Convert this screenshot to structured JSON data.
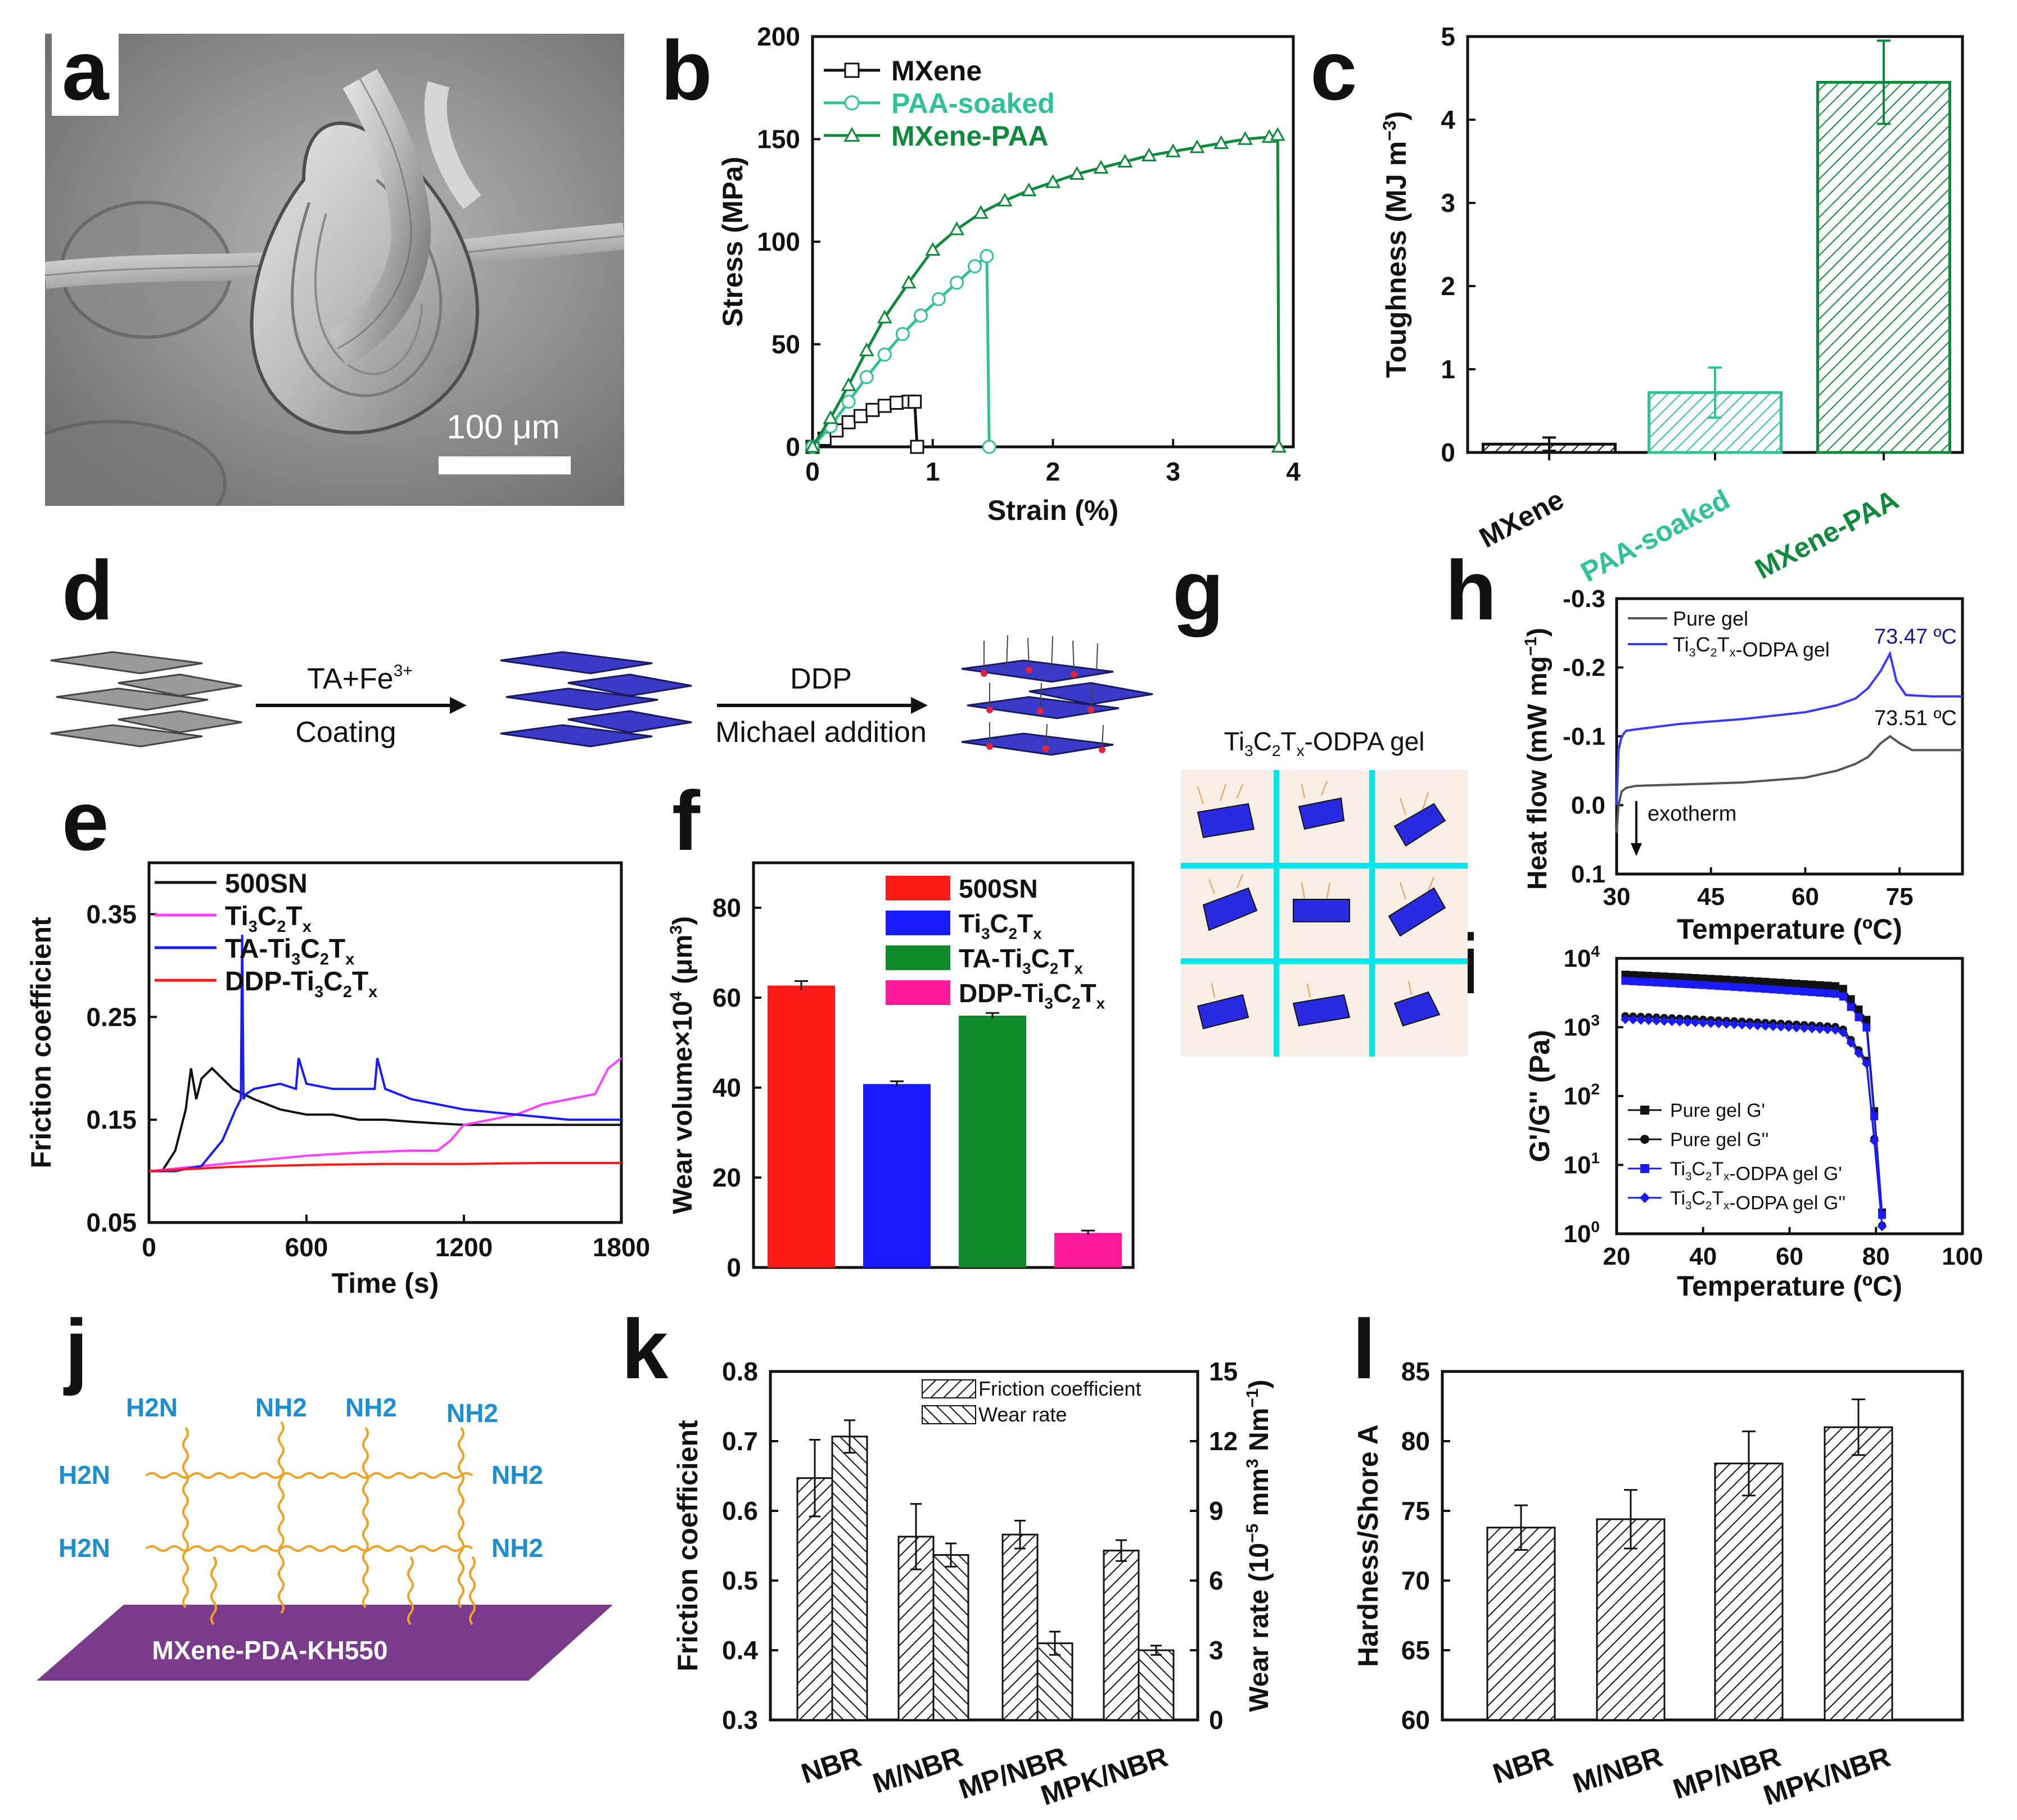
{
  "panel_labels": [
    "a",
    "b",
    "c",
    "d",
    "e",
    "f",
    "g",
    "h",
    "i",
    "j",
    "k",
    "l"
  ],
  "colors": {
    "mxene_black": "#111111",
    "paa_soaked": "#2fc48f",
    "mxene_paa": "#0f8a3c",
    "red": "#ff1a1a",
    "blue": "#1a1aff",
    "green": "#0f8a2a",
    "magenta": "#ff1a9a",
    "pink_line": "#ff40ff",
    "purple": "#7a3a8c",
    "cyan": "#00e5ee",
    "amine_blue": "#1d8fd0",
    "chain_orange": "#f0a020"
  },
  "panel_a": {
    "scale_bar_label": "100 μm"
  },
  "panel_d": {
    "step1_top": "TA+Fe",
    "step1_top_sup": "3+",
    "step1_bottom": "Coating",
    "step2_top": "DDP",
    "step2_bottom": "Michael addition"
  },
  "panel_g": {
    "title": "Ti",
    "title_full": "Ti3C2Tx-ODPA gel"
  },
  "panel_j": {
    "amine_labels": [
      "H2N",
      "NH2",
      "NH2",
      "NH2",
      "H2N",
      "NH2",
      "H2N",
      "NH2"
    ],
    "substrate_label": "MXene-PDA-KH550"
  },
  "chart_data": [
    {
      "panel": "b",
      "type": "line",
      "xlabel": "Strain (%)",
      "ylabel": "Stress (MPa)",
      "xlim": [
        0,
        4
      ],
      "ylim": [
        0,
        200
      ],
      "xticks": [
        0,
        1,
        2,
        3,
        4
      ],
      "yticks": [
        0,
        50,
        100,
        150,
        200
      ],
      "legend": [
        "MXene",
        "PAA-soaked",
        "MXene-PAA"
      ],
      "series": [
        {
          "name": "MXene",
          "color": "#111111",
          "marker": "square",
          "x": [
            0,
            0.1,
            0.2,
            0.3,
            0.4,
            0.5,
            0.6,
            0.7,
            0.8,
            0.85,
            0.87
          ],
          "y": [
            0,
            4,
            8,
            12,
            15,
            18,
            20,
            21.5,
            22,
            22,
            0
          ]
        },
        {
          "name": "PAA-soaked",
          "color": "#2fc48f",
          "marker": "circle",
          "x": [
            0,
            0.15,
            0.3,
            0.45,
            0.6,
            0.75,
            0.9,
            1.05,
            1.2,
            1.35,
            1.45,
            1.47
          ],
          "y": [
            0,
            10,
            22,
            34,
            45,
            55,
            64,
            72,
            80,
            88,
            93,
            0
          ]
        },
        {
          "name": "MXene-PAA",
          "color": "#0f8a3c",
          "marker": "triangle",
          "x": [
            0,
            0.15,
            0.3,
            0.45,
            0.6,
            0.8,
            1.0,
            1.2,
            1.4,
            1.6,
            1.8,
            2.0,
            2.2,
            2.4,
            2.6,
            2.8,
            3.0,
            3.2,
            3.4,
            3.6,
            3.8,
            3.87,
            3.88
          ],
          "y": [
            0,
            14,
            30,
            47,
            63,
            80,
            96,
            106,
            114,
            120,
            125,
            129,
            133,
            136,
            139,
            142,
            144,
            146,
            148,
            150,
            151,
            152,
            0
          ]
        }
      ]
    },
    {
      "panel": "c",
      "type": "bar",
      "ylabel": "Toughness (MJ m-3)",
      "ylim": [
        0,
        5
      ],
      "yticks": [
        0,
        1,
        2,
        3,
        4,
        5
      ],
      "categories": [
        "MXene",
        "PAA-soaked",
        "MXene-PAA"
      ],
      "values": [
        0.1,
        0.72,
        4.45
      ],
      "errors": [
        0.08,
        0.3,
        0.5
      ],
      "category_colors": [
        "#111111",
        "#2fc48f",
        "#0f8a3c"
      ]
    },
    {
      "panel": "e",
      "type": "line",
      "xlabel": "Time (s)",
      "ylabel": "Friction coefficient",
      "xlim": [
        0,
        1800
      ],
      "ylim": [
        0.05,
        0.4
      ],
      "xticks": [
        0,
        600,
        1200,
        1800
      ],
      "yticks": [
        0.05,
        0.15,
        0.25,
        0.35
      ],
      "legend": [
        "500SN",
        "Ti3C2Tx",
        "TA-Ti3C2Tx",
        "DDP-Ti3C2Tx"
      ],
      "series": [
        {
          "name": "500SN",
          "color": "#111111",
          "x": [
            0,
            50,
            100,
            140,
            160,
            180,
            200,
            240,
            280,
            320,
            400,
            500,
            600,
            700,
            800,
            900,
            1000,
            1200,
            1400,
            1600,
            1800
          ],
          "y": [
            0.1,
            0.1,
            0.12,
            0.16,
            0.2,
            0.17,
            0.19,
            0.2,
            0.19,
            0.18,
            0.17,
            0.16,
            0.155,
            0.155,
            0.15,
            0.15,
            0.148,
            0.145,
            0.145,
            0.145,
            0.145
          ]
        },
        {
          "name": "Ti3C2Tx",
          "color": "#ff40ff",
          "x": [
            0,
            200,
            400,
            600,
            800,
            1000,
            1100,
            1150,
            1200,
            1300,
            1400,
            1500,
            1600,
            1700,
            1750,
            1800
          ],
          "y": [
            0.1,
            0.105,
            0.11,
            0.115,
            0.118,
            0.12,
            0.12,
            0.13,
            0.145,
            0.15,
            0.155,
            0.165,
            0.17,
            0.175,
            0.2,
            0.21
          ]
        },
        {
          "name": "TA-Ti3C2Tx",
          "color": "#1a1aff",
          "x": [
            0,
            100,
            200,
            280,
            330,
            350,
            355,
            360,
            370,
            400,
            500,
            560,
            570,
            600,
            700,
            860,
            870,
            900,
            1000,
            1200,
            1400,
            1600,
            1800
          ],
          "y": [
            0.1,
            0.1,
            0.105,
            0.13,
            0.16,
            0.17,
            0.33,
            0.17,
            0.175,
            0.18,
            0.185,
            0.18,
            0.21,
            0.185,
            0.18,
            0.18,
            0.21,
            0.18,
            0.17,
            0.16,
            0.155,
            0.15,
            0.15
          ]
        },
        {
          "name": "DDP-Ti3C2Tx",
          "color": "#ff1a1a",
          "x": [
            0,
            300,
            600,
            900,
            1200,
            1500,
            1800
          ],
          "y": [
            0.1,
            0.104,
            0.106,
            0.107,
            0.107,
            0.108,
            0.108
          ]
        }
      ]
    },
    {
      "panel": "f",
      "type": "bar",
      "ylabel": "Wear volume×10^4 (μm^3)",
      "ylim": [
        0,
        90
      ],
      "yticks": [
        0,
        20,
        40,
        60,
        80
      ],
      "categories": [
        "500SN",
        "Ti3C2Tx",
        "TA-Ti3C2Tx",
        "DDP-Ti3C2Tx"
      ],
      "values": [
        62.7,
        40.8,
        56.0,
        7.7
      ],
      "errors": [
        1.0,
        0.6,
        0.6,
        0.5
      ],
      "category_colors": [
        "#ff1a1a",
        "#1a1aff",
        "#0f8a2a",
        "#ff1a9a"
      ]
    },
    {
      "panel": "h",
      "type": "line",
      "xlabel": "Temperature (ºC)",
      "ylabel": "Heat flow (mW mg-1)",
      "xlim": [
        30,
        85
      ],
      "ylim": [
        0.1,
        -0.3
      ],
      "xticks": [
        30,
        45,
        60,
        75
      ],
      "yticks": [
        -0.3,
        -0.2,
        -0.1,
        0.0,
        0.1
      ],
      "legend": [
        "Pure gel",
        "Ti3C2Tx-ODPA gel"
      ],
      "annotations": [
        "73.47 ºC",
        "73.51 ºC",
        "exotherm"
      ],
      "series": [
        {
          "name": "Pure gel",
          "color": "#555555",
          "x": [
            30,
            30.3,
            30.8,
            31.5,
            33,
            40,
            50,
            60,
            65,
            68,
            70,
            72,
            73.5,
            75,
            77,
            80,
            85
          ],
          "y": [
            0.04,
            0.0,
            -0.02,
            -0.025,
            -0.028,
            -0.03,
            -0.033,
            -0.04,
            -0.05,
            -0.06,
            -0.07,
            -0.09,
            -0.1,
            -0.09,
            -0.08,
            -0.08,
            -0.08
          ]
        },
        {
          "name": "Ti3C2Tx-ODPA gel",
          "color": "#3a3aff",
          "x": [
            30,
            30.3,
            30.8,
            31.5,
            33,
            40,
            50,
            60,
            65,
            68,
            70,
            72,
            73.47,
            74.5,
            76,
            80,
            85
          ],
          "y": [
            0.0,
            -0.08,
            -0.1,
            -0.108,
            -0.11,
            -0.118,
            -0.125,
            -0.135,
            -0.145,
            -0.155,
            -0.17,
            -0.195,
            -0.22,
            -0.18,
            -0.16,
            -0.158,
            -0.158
          ]
        }
      ]
    },
    {
      "panel": "i",
      "type": "scatter",
      "xlabel": "Temperature (ºC)",
      "ylabel": "G'/G'' (Pa)",
      "yscale": "log",
      "xlim": [
        20,
        100
      ],
      "ylim": [
        1,
        10000
      ],
      "xticks": [
        20,
        40,
        60,
        80,
        100
      ],
      "ytick_labels": [
        "10^0",
        "10^1",
        "10^2",
        "10^3",
        "10^4"
      ],
      "legend": [
        "Pure gel G'",
        "Pure gel G''",
        "Ti3C2Tx-ODPA gel G'",
        "Ti3C2Tx-ODPA gel G''"
      ],
      "series": [
        {
          "name": "Pure gel G'",
          "color": "#111111",
          "marker": "square",
          "start": 5800,
          "end": 3900
        },
        {
          "name": "Pure gel G''",
          "color": "#111111",
          "marker": "circle",
          "start": 1450,
          "end": 1000
        },
        {
          "name": "Ti3C2Tx-ODPA gel G'",
          "color": "#1a1aff",
          "marker": "square",
          "start": 4700,
          "end": 3000
        },
        {
          "name": "Ti3C2Tx-ODPA gel G''",
          "color": "#1a1aff",
          "marker": "diamond",
          "start": 1300,
          "end": 900
        }
      ]
    },
    {
      "panel": "k",
      "type": "bar",
      "ylabel": "Friction coefficient",
      "y2label": "Wear rate (10-5 mm3 Nm-1)",
      "ylim": [
        0.3,
        0.8
      ],
      "y2lim": [
        0,
        15
      ],
      "yticks": [
        0.3,
        0.4,
        0.5,
        0.6,
        0.7,
        0.8
      ],
      "y2ticks": [
        0,
        3,
        6,
        9,
        12,
        15
      ],
      "categories": [
        "NBR",
        "M/NBR",
        "MP/NBR",
        "MPK/NBR"
      ],
      "legend": [
        "Friction coefficient",
        "Wear rate"
      ],
      "series": [
        {
          "name": "Friction coefficient",
          "axis": "left",
          "values": [
            0.647,
            0.563,
            0.566,
            0.543
          ],
          "errors": [
            0.055,
            0.047,
            0.02,
            0.015
          ]
        },
        {
          "name": "Wear rate",
          "axis": "right",
          "values": [
            12.2,
            7.1,
            3.3,
            3.0
          ],
          "errors": [
            0.7,
            0.5,
            0.5,
            0.2
          ]
        }
      ]
    },
    {
      "panel": "l",
      "type": "bar",
      "ylabel": "Hardness/Shore A",
      "ylim": [
        60,
        85
      ],
      "yticks": [
        60,
        65,
        70,
        75,
        80,
        85
      ],
      "categories": [
        "NBR",
        "M/NBR",
        "MP/NBR",
        "MPK/NBR"
      ],
      "values": [
        73.8,
        74.4,
        78.4,
        81.0
      ],
      "errors": [
        1.6,
        2.1,
        2.3,
        2.0
      ]
    }
  ]
}
